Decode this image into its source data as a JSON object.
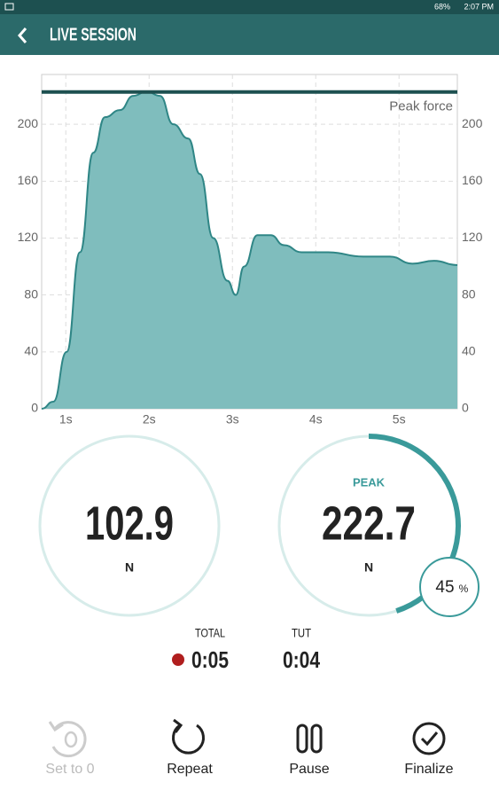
{
  "status_bar": {
    "battery": "68%",
    "time": "2:07 PM"
  },
  "header": {
    "title": "LIVE SESSION"
  },
  "chart_data": {
    "type": "area",
    "annotation": "Peak force",
    "x": [
      0.71,
      0.85,
      1.01,
      1.17,
      1.33,
      1.47,
      1.65,
      1.81,
      1.97,
      2.13,
      2.29,
      2.47,
      2.61,
      2.77,
      2.94,
      3.04,
      3.14,
      3.3,
      3.46,
      3.62,
      3.83,
      4.15,
      4.57,
      4.89,
      5.16,
      5.42,
      5.7
    ],
    "series": [
      {
        "color": "#7fbdbd",
        "values": [
          0,
          5,
          40,
          110,
          180,
          205,
          210,
          220,
          223,
          220,
          200,
          190,
          165,
          120,
          90,
          80,
          100,
          122,
          122,
          115,
          110,
          110,
          107,
          107,
          102,
          104,
          101
        ]
      }
    ],
    "xlim": [
      0.71,
      5.7
    ],
    "ylim": [
      0,
      235
    ],
    "xticks": [
      {
        "value": 1,
        "label": "1s"
      },
      {
        "value": 2,
        "label": "2s"
      },
      {
        "value": 3,
        "label": "3s"
      },
      {
        "value": 4,
        "label": "4s"
      },
      {
        "value": 5,
        "label": "5s"
      }
    ],
    "yticks": [
      0,
      40,
      80,
      120,
      160,
      200
    ],
    "grid": true
  },
  "readings": {
    "current": {
      "value": 102.9,
      "unit": "N"
    },
    "peak": {
      "label": "PEAK",
      "value": 222.7,
      "unit": "N",
      "percent": 45,
      "percent_unit": "%"
    }
  },
  "timers": {
    "total": {
      "label": "TOTAL",
      "value": "0:05"
    },
    "tut": {
      "label": "TUT",
      "value": "0:04"
    }
  },
  "actions": [
    "Set to 0",
    "Repeat",
    "Pause",
    "Finalize"
  ]
}
